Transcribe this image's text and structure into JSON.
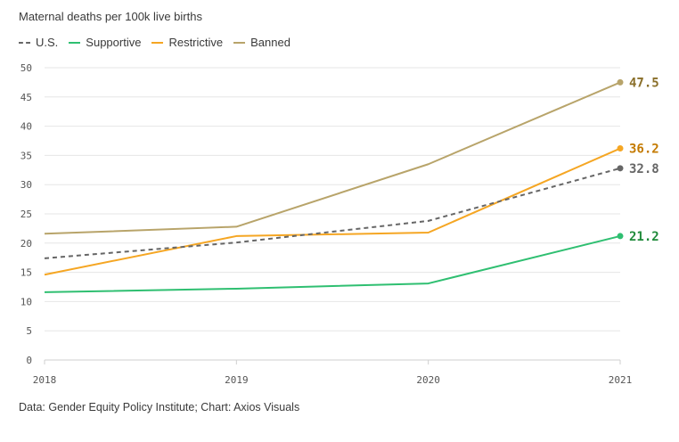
{
  "subtitle": "Maternal deaths per 100k live births",
  "source": "Data: Gender Equity Policy Institute; Chart: Axios Visuals",
  "chart_data": {
    "type": "line",
    "title": "",
    "xlabel": "",
    "ylabel": "",
    "x": [
      "2018",
      "2019",
      "2020",
      "2021"
    ],
    "ylim": [
      0,
      50
    ],
    "yticks": [
      "0",
      "5",
      "10",
      "15",
      "20",
      "25",
      "30",
      "35",
      "40",
      "45",
      "50"
    ],
    "grid": "horizontal",
    "legend_position": "top-left",
    "series": [
      {
        "name": "U.S.",
        "values": [
          17.4,
          20.1,
          23.8,
          32.8
        ],
        "color": "#666666",
        "dashed": true,
        "end_label": "32.8"
      },
      {
        "name": "Supportive",
        "values": [
          11.6,
          12.2,
          13.1,
          21.2
        ],
        "color": "#2fbf71",
        "dashed": false,
        "end_label": "21.2"
      },
      {
        "name": "Restrictive",
        "values": [
          14.6,
          21.2,
          21.8,
          36.2
        ],
        "color": "#f5a623",
        "dashed": false,
        "end_label": "36.2"
      },
      {
        "name": "Banned",
        "values": [
          21.6,
          22.8,
          33.5,
          47.5
        ],
        "color": "#b8a46a",
        "dashed": false,
        "end_label": "47.5"
      }
    ],
    "end_label_colors": {
      "U.S.": "#666666",
      "Supportive": "#1f8a3a",
      "Restrictive": "#c47a00",
      "Banned": "#8a6f2a"
    }
  }
}
